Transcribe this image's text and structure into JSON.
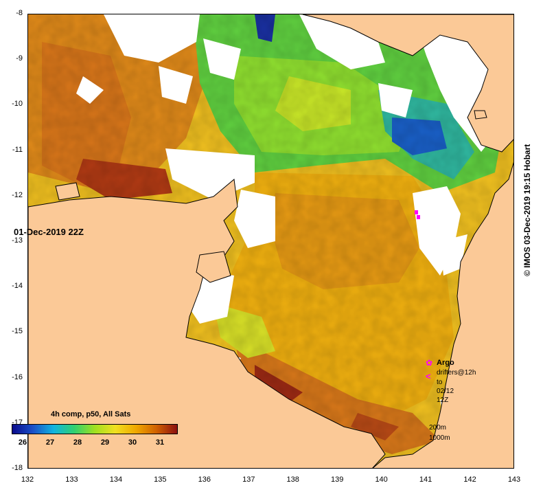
{
  "map": {
    "timestamp": "01-Dec-2019 22Z",
    "credit": "© IMOS 03-Dec-2019 19:15 Hobart",
    "lon_ticks": [
      "132",
      "133",
      "134",
      "135",
      "136",
      "137",
      "138",
      "139",
      "140",
      "141",
      "142",
      "143"
    ],
    "lat_ticks": [
      "-8",
      "-9",
      "-10",
      "-11",
      "-12",
      "-13",
      "-14",
      "-15",
      "-16",
      "-17",
      "-18"
    ],
    "lon_range": [
      132,
      143
    ],
    "lat_range": [
      -8,
      -18
    ],
    "colors": {
      "land": "#fbc997",
      "cloud": "#ffffff",
      "coast": "#000000",
      "argo": "#ff00ff"
    }
  },
  "colorbar": {
    "title": "4h comp, p50, All Sats",
    "labels": [
      "26",
      "27",
      "28",
      "29",
      "30",
      "31"
    ],
    "range": [
      25.6,
      31.6
    ],
    "unit_stops": [
      "#0a0a8c",
      "#1a50c8",
      "#10b4e0",
      "#30d070",
      "#a0e020",
      "#f0e020",
      "#f0a800",
      "#d06000",
      "#8c1010"
    ]
  },
  "legend": {
    "argo_label": "Argo",
    "drifters_label": "drifters@12h",
    "drifters_range": "to 02/12 12Z",
    "depth_200": "200m",
    "depth_1000": "1000m"
  }
}
